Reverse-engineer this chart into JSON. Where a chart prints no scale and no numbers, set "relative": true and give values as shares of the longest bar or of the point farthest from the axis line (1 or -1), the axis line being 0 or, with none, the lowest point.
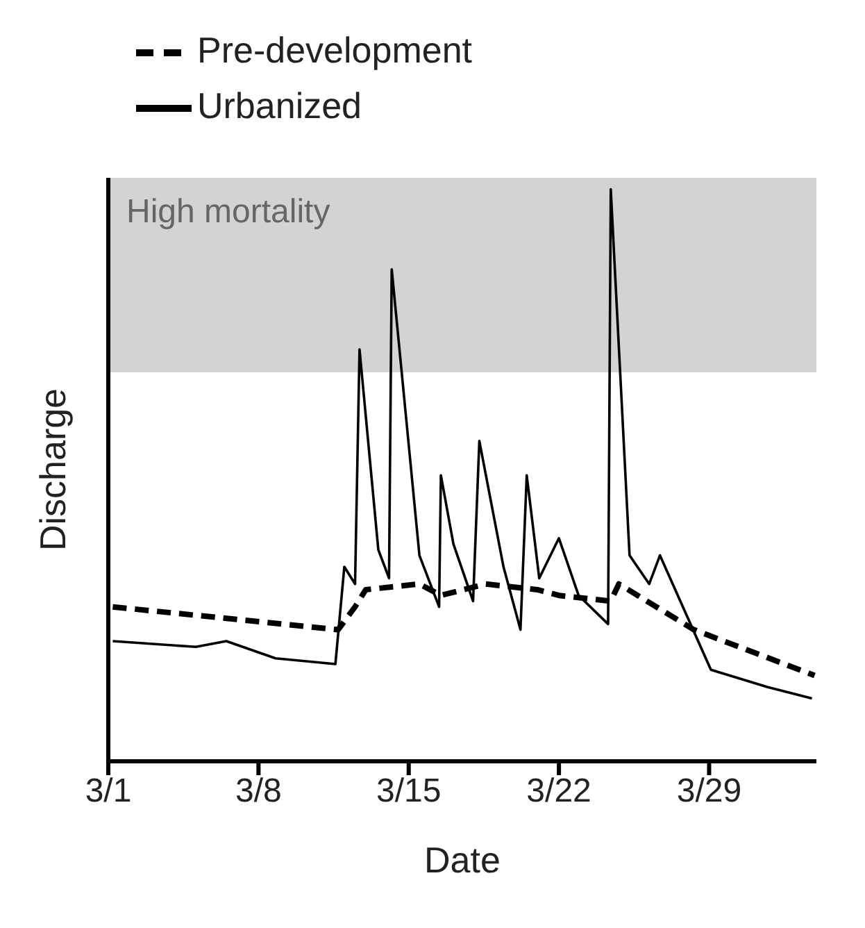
{
  "chart_data": {
    "type": "line",
    "xlabel": "Date",
    "ylabel": "Discharge",
    "relative": true,
    "xlim": [
      "--03-01",
      "--04-03"
    ],
    "xticks": [
      {
        "value": "--03-01",
        "label": "3/1"
      },
      {
        "value": "--03-08",
        "label": "3/8"
      },
      {
        "value": "--03-15",
        "label": "3/15"
      },
      {
        "value": "--03-22",
        "label": "3/22"
      },
      {
        "value": "--03-29",
        "label": "3/29"
      }
    ],
    "legend": "top left",
    "grid": false,
    "marker": "none",
    "bands": [
      {
        "axis": "y",
        "from": 0.68,
        "to": 1.02,
        "label": "High mortality",
        "color": "#d3d3d3"
      }
    ],
    "series": [
      {
        "name": "Pre-development",
        "color": "#000000",
        "line_style": "dashed",
        "x": [
          "--03-01T05:00",
          "--03-11T17:00",
          "--03-12T12:00",
          "--03-13T00:00",
          "--03-15T12:00",
          "--03-16T12:00",
          "--03-18T14:00",
          "--03-21T00:00",
          "--03-22T00:00",
          "--03-24T10:00",
          "--03-24T19:00",
          "--03-27T10:00",
          "--03-28T07:00",
          "--04-02T22:00"
        ],
        "values": [
          0.27,
          0.23,
          0.27,
          0.3,
          0.31,
          0.29,
          0.31,
          0.3,
          0.29,
          0.28,
          0.31,
          0.25,
          0.23,
          0.15
        ]
      },
      {
        "name": "Urbanized",
        "color": "#000000",
        "line_style": "solid",
        "x": [
          "--03-01T05:00",
          "--03-05T02:00",
          "--03-06T12:00",
          "--03-08T19:00",
          "--03-11T14:00",
          "--03-12T00:00",
          "--03-12T12:00",
          "--03-12T17:00",
          "--03-13T14:00",
          "--03-14T02:00",
          "--03-14T05:00",
          "--03-15T12:00",
          "--03-16T10:00",
          "--03-16T12:00",
          "--03-17T02:00",
          "--03-18T00:00",
          "--03-18T07:00",
          "--03-19T10:00",
          "--03-20T05:00",
          "--03-20T12:00",
          "--03-21T02:00",
          "--03-22T00:00",
          "--03-22T22:00",
          "--03-24T07:00",
          "--03-24T10:00",
          "--03-25T07:00",
          "--03-26T05:00",
          "--03-26T17:00",
          "--03-29T02:00",
          "--03-31T17:00",
          "--04-02T19:00"
        ],
        "values": [
          0.21,
          0.2,
          0.21,
          0.18,
          0.17,
          0.34,
          0.31,
          0.72,
          0.37,
          0.32,
          0.86,
          0.36,
          0.27,
          0.5,
          0.38,
          0.28,
          0.56,
          0.34,
          0.23,
          0.5,
          0.32,
          0.39,
          0.29,
          0.24,
          1.0,
          0.36,
          0.31,
          0.36,
          0.16,
          0.13,
          0.11
        ]
      }
    ]
  }
}
